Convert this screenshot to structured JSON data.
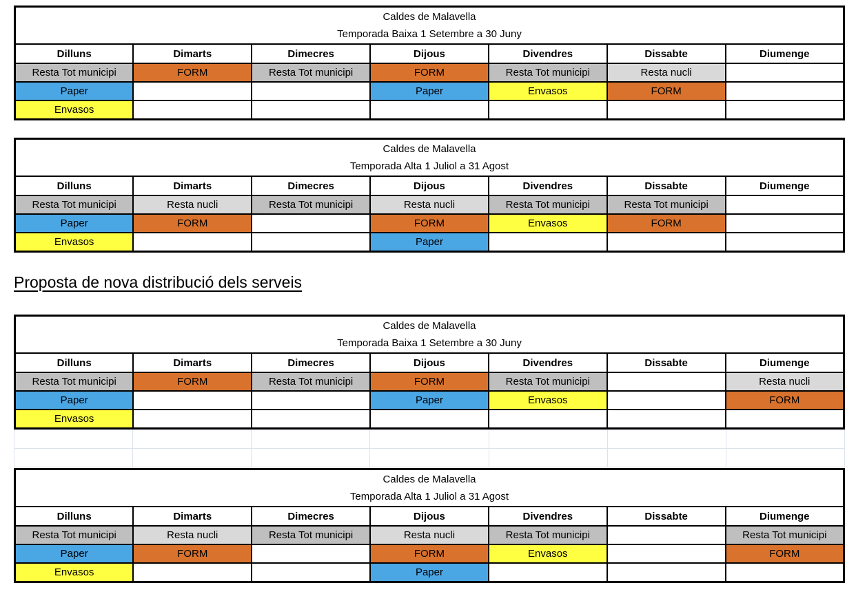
{
  "heading": "Proposta de nova distribució dels serveis",
  "colors": {
    "resta_municipi": "#BFBFBF",
    "resta_nucli": "#D9D9D9",
    "form": "#D9722D",
    "paper": "#4BA6E4",
    "envasos": "#FFFF42",
    "table_border": "#000000",
    "ghost_grid": "#DCE2EC"
  },
  "days": [
    "Dilluns",
    "Dimarts",
    "Dimecres",
    "Dijous",
    "Divendres",
    "Dissabte",
    "Diumenge"
  ],
  "tables": [
    {
      "id": "baixa-actual",
      "title": "Caldes de Malavella",
      "subtitle": "Temporada Baixa 1 Setembre a 30 Juny",
      "ghost_rows": 0,
      "rows": [
        [
          {
            "label": "Resta Tot municipi",
            "type": "resta-municipi"
          },
          {
            "label": "FORM",
            "type": "form"
          },
          {
            "label": "Resta Tot municipi",
            "type": "resta-municipi"
          },
          {
            "label": "FORM",
            "type": "form"
          },
          {
            "label": "Resta Tot municipi",
            "type": "resta-municipi"
          },
          {
            "label": "Resta nucli",
            "type": "resta-nucli"
          },
          {
            "label": "",
            "type": "empty"
          }
        ],
        [
          {
            "label": "Paper",
            "type": "paper"
          },
          {
            "label": "",
            "type": "empty"
          },
          {
            "label": "",
            "type": "empty"
          },
          {
            "label": "Paper",
            "type": "paper"
          },
          {
            "label": "Envasos",
            "type": "envasos"
          },
          {
            "label": "FORM",
            "type": "form"
          },
          {
            "label": "",
            "type": "empty"
          }
        ],
        [
          {
            "label": "Envasos",
            "type": "envasos"
          },
          {
            "label": "",
            "type": "empty"
          },
          {
            "label": "",
            "type": "empty"
          },
          {
            "label": "",
            "type": "empty"
          },
          {
            "label": "",
            "type": "empty"
          },
          {
            "label": "",
            "type": "empty"
          },
          {
            "label": "",
            "type": "empty"
          }
        ]
      ]
    },
    {
      "id": "alta-actual",
      "title": "Caldes de Malavella",
      "subtitle": "Temporada Alta 1 Juliol a 31 Agost",
      "ghost_rows": 0,
      "rows": [
        [
          {
            "label": "Resta Tot municipi",
            "type": "resta-municipi"
          },
          {
            "label": "Resta nucli",
            "type": "resta-nucli"
          },
          {
            "label": "Resta Tot municipi",
            "type": "resta-municipi"
          },
          {
            "label": "Resta nucli",
            "type": "resta-nucli"
          },
          {
            "label": "Resta Tot municipi",
            "type": "resta-municipi"
          },
          {
            "label": "Resta Tot municipi",
            "type": "resta-municipi"
          },
          {
            "label": "",
            "type": "empty"
          }
        ],
        [
          {
            "label": "Paper",
            "type": "paper"
          },
          {
            "label": "FORM",
            "type": "form"
          },
          {
            "label": "",
            "type": "empty"
          },
          {
            "label": "FORM",
            "type": "form"
          },
          {
            "label": "Envasos",
            "type": "envasos"
          },
          {
            "label": "FORM",
            "type": "form"
          },
          {
            "label": "",
            "type": "empty"
          }
        ],
        [
          {
            "label": "Envasos",
            "type": "envasos"
          },
          {
            "label": "",
            "type": "empty"
          },
          {
            "label": "",
            "type": "empty"
          },
          {
            "label": "Paper",
            "type": "paper"
          },
          {
            "label": "",
            "type": "empty"
          },
          {
            "label": "",
            "type": "empty"
          },
          {
            "label": "",
            "type": "empty"
          }
        ]
      ]
    },
    {
      "id": "baixa-proposta",
      "title": "Caldes de Malavella",
      "subtitle": "Temporada Baixa 1 Setembre a 30 Juny",
      "ghost_rows": 2,
      "rows": [
        [
          {
            "label": "Resta Tot municipi",
            "type": "resta-municipi"
          },
          {
            "label": "FORM",
            "type": "form"
          },
          {
            "label": "Resta Tot municipi",
            "type": "resta-municipi"
          },
          {
            "label": "FORM",
            "type": "form"
          },
          {
            "label": "Resta Tot municipi",
            "type": "resta-municipi"
          },
          {
            "label": "",
            "type": "empty"
          },
          {
            "label": "Resta nucli",
            "type": "resta-nucli"
          }
        ],
        [
          {
            "label": "Paper",
            "type": "paper"
          },
          {
            "label": "",
            "type": "empty"
          },
          {
            "label": "",
            "type": "empty"
          },
          {
            "label": "Paper",
            "type": "paper"
          },
          {
            "label": "Envasos",
            "type": "envasos"
          },
          {
            "label": "",
            "type": "empty"
          },
          {
            "label": "FORM",
            "type": "form"
          }
        ],
        [
          {
            "label": "Envasos",
            "type": "envasos"
          },
          {
            "label": "",
            "type": "empty"
          },
          {
            "label": "",
            "type": "empty"
          },
          {
            "label": "",
            "type": "empty"
          },
          {
            "label": "",
            "type": "empty"
          },
          {
            "label": "",
            "type": "empty"
          },
          {
            "label": "",
            "type": "empty"
          }
        ]
      ]
    },
    {
      "id": "alta-proposta",
      "title": "Caldes de Malavella",
      "subtitle": "Temporada Alta 1 Juliol a 31 Agost",
      "ghost_rows": 0,
      "rows": [
        [
          {
            "label": "Resta Tot municipi",
            "type": "resta-municipi"
          },
          {
            "label": "Resta nucli",
            "type": "resta-nucli"
          },
          {
            "label": "Resta Tot municipi",
            "type": "resta-municipi"
          },
          {
            "label": "Resta nucli",
            "type": "resta-nucli"
          },
          {
            "label": "Resta Tot municipi",
            "type": "resta-municipi"
          },
          {
            "label": "",
            "type": "empty"
          },
          {
            "label": "Resta Tot municipi",
            "type": "resta-municipi"
          }
        ],
        [
          {
            "label": "Paper",
            "type": "paper"
          },
          {
            "label": "FORM",
            "type": "form"
          },
          {
            "label": "",
            "type": "empty"
          },
          {
            "label": "FORM",
            "type": "form"
          },
          {
            "label": "Envasos",
            "type": "envasos"
          },
          {
            "label": "",
            "type": "empty"
          },
          {
            "label": "FORM",
            "type": "form"
          }
        ],
        [
          {
            "label": "Envasos",
            "type": "envasos"
          },
          {
            "label": "",
            "type": "empty"
          },
          {
            "label": "",
            "type": "empty"
          },
          {
            "label": "Paper",
            "type": "paper"
          },
          {
            "label": "",
            "type": "empty"
          },
          {
            "label": "",
            "type": "empty"
          },
          {
            "label": "",
            "type": "empty"
          }
        ]
      ]
    }
  ]
}
